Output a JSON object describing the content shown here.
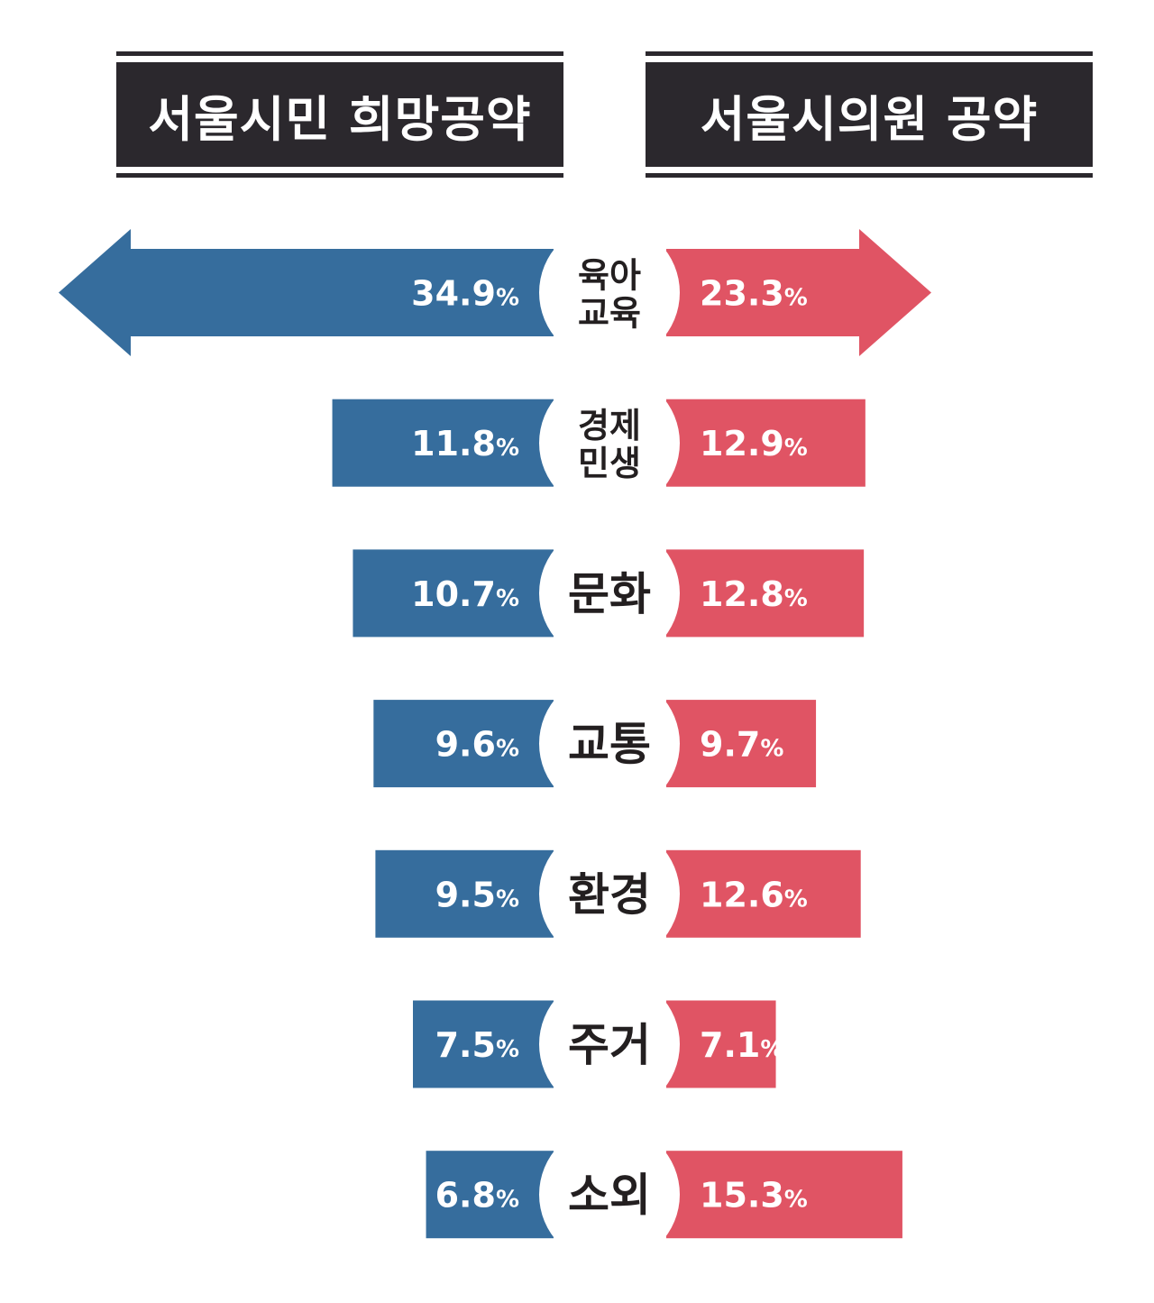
{
  "headers": {
    "left": "서울시민 희망공약",
    "right": "서울시의원 공약"
  },
  "colors": {
    "left_bar": "#366d9d",
    "right_bar": "#e05464",
    "header_bg": "#2b282d",
    "center_text": "#231f20"
  },
  "chart_data": {
    "type": "bar",
    "title": "",
    "unit": "%",
    "categories": [
      [
        "육아",
        "교육"
      ],
      [
        "경제",
        "민생"
      ],
      [
        "문화"
      ],
      [
        "교통"
      ],
      [
        "환경"
      ],
      [
        "주거"
      ],
      [
        "소외"
      ]
    ],
    "series": [
      {
        "name": "서울시민 희망공약",
        "values": [
          34.9,
          11.8,
          10.7,
          9.6,
          9.5,
          7.5,
          6.8
        ]
      },
      {
        "name": "서울시의원 공약",
        "values": [
          23.3,
          12.9,
          12.8,
          9.7,
          12.6,
          7.1,
          15.3
        ]
      }
    ]
  }
}
